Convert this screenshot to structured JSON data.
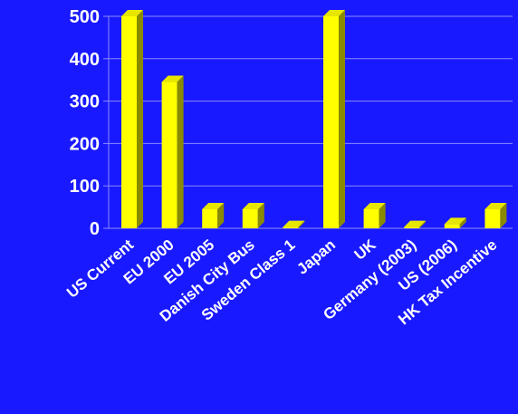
{
  "chart_data": {
    "type": "bar",
    "categories": [
      "US Current",
      "EU 2000",
      "EU 2005",
      "Danish City Bus",
      "Sweden Class 1",
      "Japan",
      "UK",
      "Germany (2003)",
      "US (2006)",
      "HK Tax Incentive"
    ],
    "values": [
      500,
      345,
      45,
      45,
      3,
      500,
      45,
      3,
      10,
      45
    ],
    "yticks": [
      0,
      100,
      200,
      300,
      400,
      500
    ],
    "ylim": [
      0,
      500
    ],
    "title": "",
    "xlabel": "",
    "ylabel": "",
    "grid": true,
    "colors": {
      "background": "#1919ff",
      "bar_front": "#ffff00",
      "bar_side": "#8a8a00",
      "bar_top": "#e6e600",
      "grid": "#8a8aff",
      "text": "#ffffff"
    }
  }
}
